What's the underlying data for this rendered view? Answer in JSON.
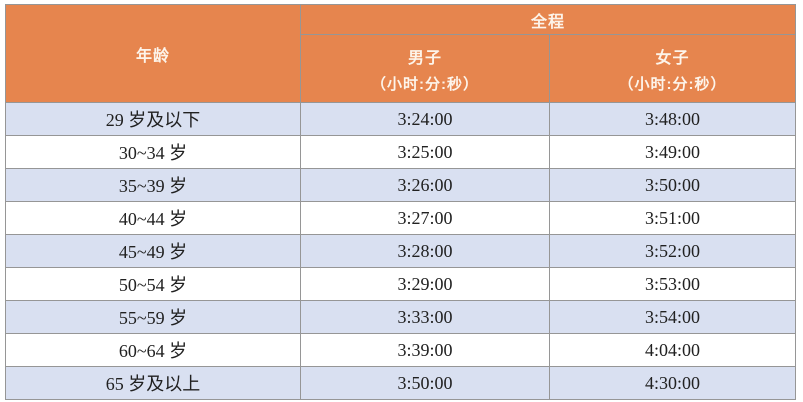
{
  "table": {
    "header": {
      "age_label": "年龄",
      "course_label": "全程",
      "men_label": "男子",
      "men_unit": "（小时:分:秒）",
      "women_label": "女子",
      "women_unit": "（小时:分:秒）"
    },
    "rows": [
      {
        "age": "29 岁及以下",
        "men": "3:24:00",
        "women": "3:48:00"
      },
      {
        "age": "30~34 岁",
        "men": "3:25:00",
        "women": "3:49:00"
      },
      {
        "age": "35~39 岁",
        "men": "3:26:00",
        "women": "3:50:00"
      },
      {
        "age": "40~44 岁",
        "men": "3:27:00",
        "women": "3:51:00"
      },
      {
        "age": "45~49 岁",
        "men": "3:28:00",
        "women": "3:52:00"
      },
      {
        "age": "50~54 岁",
        "men": "3:29:00",
        "women": "3:53:00"
      },
      {
        "age": "55~59 岁",
        "men": "3:33:00",
        "women": "3:54:00"
      },
      {
        "age": "60~64 岁",
        "men": "3:39:00",
        "women": "4:04:00"
      },
      {
        "age": "65 岁及以上",
        "men": "3:50:00",
        "women": "4:30:00"
      }
    ]
  },
  "chart_data": {
    "type": "table",
    "columns": [
      "年龄",
      "全程 男子（小时:分:秒）",
      "全程 女子（小时:分:秒）"
    ],
    "rows": [
      [
        "29 岁及以下",
        "3:24:00",
        "3:48:00"
      ],
      [
        "30~34 岁",
        "3:25:00",
        "3:49:00"
      ],
      [
        "35~39 岁",
        "3:26:00",
        "3:50:00"
      ],
      [
        "40~44 岁",
        "3:27:00",
        "3:51:00"
      ],
      [
        "45~49 岁",
        "3:28:00",
        "3:52:00"
      ],
      [
        "50~54 岁",
        "3:29:00",
        "3:53:00"
      ],
      [
        "55~59 岁",
        "3:33:00",
        "3:54:00"
      ],
      [
        "60~64 岁",
        "3:39:00",
        "4:04:00"
      ],
      [
        "65 岁及以上",
        "3:50:00",
        "4:30:00"
      ]
    ]
  },
  "colors": {
    "header_bg": "#E6854E",
    "header_text": "#FDF4EA",
    "row_alt_bg": "#D9E0F1",
    "row_bg": "#FFFFFF",
    "border": "#969696",
    "body_text": "#212121"
  }
}
